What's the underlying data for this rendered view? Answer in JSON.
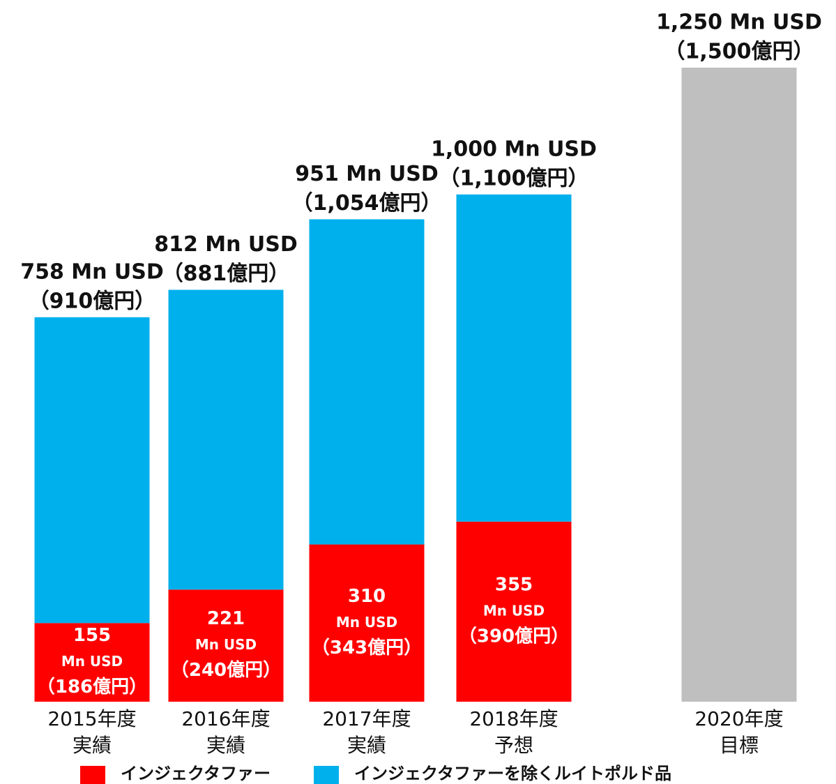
{
  "chart_data": {
    "type": "stacked_bar",
    "categories": [
      [
        "2015年度",
        "実績"
      ],
      [
        "2016年度",
        "実績"
      ],
      [
        "2017年度",
        "実績"
      ],
      [
        "2018年度",
        "予想"
      ],
      [
        "2020年度",
        "目標"
      ]
    ],
    "series": [
      {
        "name": "インジェクタファー",
        "color": "#ff0000",
        "values": [
          155,
          221,
          310,
          355,
          null
        ],
        "value_labels": [
          [
            "155",
            "Mn USD",
            "（186億円）"
          ],
          [
            "221",
            "Mn USD",
            "（240億円）"
          ],
          [
            "310",
            "Mn USD",
            "（343億円）"
          ],
          [
            "355",
            "Mn USD",
            "（390億円）"
          ],
          null
        ]
      },
      {
        "name": "インジェクタファーを除くルイトポルド品",
        "color": "#00b0ec",
        "values": [
          603,
          591,
          641,
          645,
          null
        ]
      },
      {
        "color": "#bfbfbf",
        "values": [
          null,
          null,
          null,
          null,
          1250
        ]
      }
    ],
    "totals": [
      758,
      812,
      951,
      1000,
      1250
    ],
    "total_labels": [
      [
        "758 Mn USD",
        "（910億円）"
      ],
      [
        "812 Mn USD",
        "（881億円）"
      ],
      [
        "951 Mn USD",
        "（1,054億円）"
      ],
      [
        "1,000 Mn USD",
        "（1,100億円）"
      ],
      [
        "1,250 Mn USD",
        "（1,500億円）"
      ]
    ],
    "ylim": [
      0,
      1250
    ]
  }
}
